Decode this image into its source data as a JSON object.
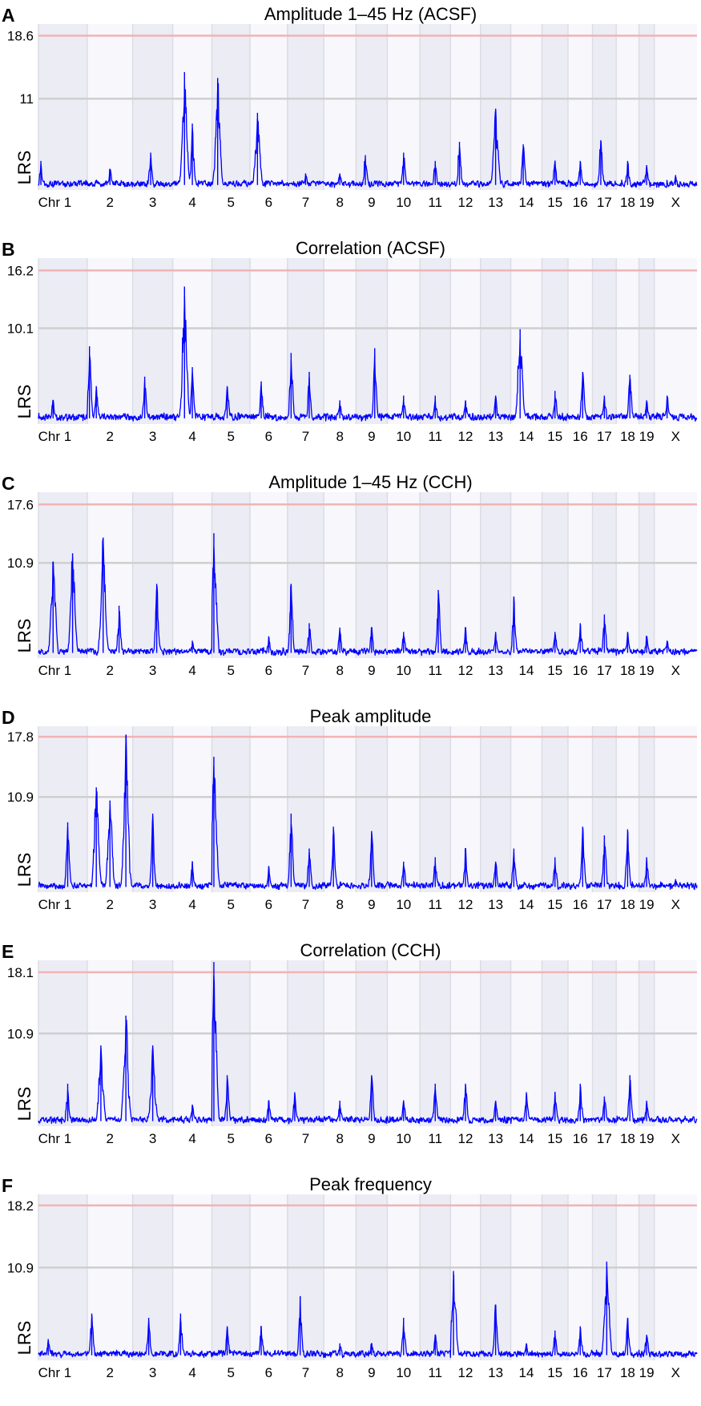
{
  "colors": {
    "line": "#0000ff",
    "threshold_line": "#f0b4b4",
    "suggestive_line": "#cfcfcf",
    "band_shaded": "#ececf5",
    "band_light": "#f7f7fc",
    "band_border": "#dcdce6"
  },
  "chromosomes": [
    {
      "name": "1",
      "label": "Chr 1",
      "length": 195
    },
    {
      "name": "2",
      "label": "2",
      "length": 182
    },
    {
      "name": "3",
      "label": "3",
      "length": 160
    },
    {
      "name": "4",
      "label": "4",
      "length": 157
    },
    {
      "name": "5",
      "label": "5",
      "length": 152
    },
    {
      "name": "6",
      "label": "6",
      "length": 150
    },
    {
      "name": "7",
      "label": "7",
      "length": 145
    },
    {
      "name": "8",
      "label": "8",
      "length": 129
    },
    {
      "name": "9",
      "label": "9",
      "length": 125
    },
    {
      "name": "10",
      "label": "10",
      "length": 131
    },
    {
      "name": "11",
      "label": "11",
      "length": 122
    },
    {
      "name": "12",
      "label": "12",
      "length": 120
    },
    {
      "name": "13",
      "label": "13",
      "length": 121
    },
    {
      "name": "14",
      "label": "14",
      "length": 125
    },
    {
      "name": "15",
      "label": "15",
      "length": 104
    },
    {
      "name": "16",
      "label": "16",
      "length": 98
    },
    {
      "name": "17",
      "label": "17",
      "length": 95
    },
    {
      "name": "18",
      "label": "18",
      "length": 91
    },
    {
      "name": "19",
      "label": "19",
      "length": 61
    },
    {
      "name": "X",
      "label": "X",
      "length": 171
    }
  ],
  "chart_data": [
    {
      "type": "line",
      "letter": "A",
      "title": "Amplitude 1–45 Hz (ACSF)",
      "ylabel": "LRS",
      "yticks": [
        "18.6",
        "11"
      ],
      "ylim": [
        0,
        20
      ],
      "significant_threshold": 18.6,
      "suggestive_threshold": 11,
      "peaks": [
        {
          "chr": "1",
          "pos": 0.05,
          "lrs": 3.5
        },
        {
          "chr": "2",
          "pos": 0.5,
          "lrs": 2.5
        },
        {
          "chr": "3",
          "pos": 0.45,
          "lrs": 4.5
        },
        {
          "chr": "4",
          "pos": 0.3,
          "lrs": 14.2
        },
        {
          "chr": "4",
          "pos": 0.5,
          "lrs": 8
        },
        {
          "chr": "5",
          "pos": 0.15,
          "lrs": 13.5
        },
        {
          "chr": "6",
          "pos": 0.2,
          "lrs": 9.3
        },
        {
          "chr": "7",
          "pos": 0.5,
          "lrs": 2
        },
        {
          "chr": "8",
          "pos": 0.5,
          "lrs": 2
        },
        {
          "chr": "9",
          "pos": 0.3,
          "lrs": 4.2
        },
        {
          "chr": "10",
          "pos": 0.5,
          "lrs": 4.5
        },
        {
          "chr": "11",
          "pos": 0.5,
          "lrs": 3.5
        },
        {
          "chr": "12",
          "pos": 0.3,
          "lrs": 5.8
        },
        {
          "chr": "13",
          "pos": 0.5,
          "lrs": 9.8
        },
        {
          "chr": "14",
          "pos": 0.4,
          "lrs": 5.5
        },
        {
          "chr": "15",
          "pos": 0.5,
          "lrs": 3.5
        },
        {
          "chr": "16",
          "pos": 0.5,
          "lrs": 3.5
        },
        {
          "chr": "17",
          "pos": 0.35,
          "lrs": 6
        },
        {
          "chr": "18",
          "pos": 0.5,
          "lrs": 3.5
        },
        {
          "chr": "19",
          "pos": 0.5,
          "lrs": 3
        },
        {
          "chr": "X",
          "pos": 0.5,
          "lrs": 1.8
        }
      ]
    },
    {
      "type": "line",
      "letter": "B",
      "title": "Correlation (ACSF)",
      "ylabel": "LRS",
      "yticks": [
        "16.2",
        "10.1"
      ],
      "ylim": [
        0,
        17.5
      ],
      "significant_threshold": 16.2,
      "suggestive_threshold": 10.1,
      "peaks": [
        {
          "chr": "1",
          "pos": 0.3,
          "lrs": 2.5
        },
        {
          "chr": "2",
          "pos": 0.05,
          "lrs": 8.2
        },
        {
          "chr": "2",
          "pos": 0.2,
          "lrs": 4
        },
        {
          "chr": "3",
          "pos": 0.3,
          "lrs": 5
        },
        {
          "chr": "4",
          "pos": 0.3,
          "lrs": 14.5
        },
        {
          "chr": "4",
          "pos": 0.5,
          "lrs": 6
        },
        {
          "chr": "5",
          "pos": 0.4,
          "lrs": 4
        },
        {
          "chr": "6",
          "pos": 0.3,
          "lrs": 4.5
        },
        {
          "chr": "7",
          "pos": 0.1,
          "lrs": 7.5
        },
        {
          "chr": "7",
          "pos": 0.6,
          "lrs": 5.5
        },
        {
          "chr": "8",
          "pos": 0.5,
          "lrs": 2.5
        },
        {
          "chr": "9",
          "pos": 0.6,
          "lrs": 8
        },
        {
          "chr": "10",
          "pos": 0.5,
          "lrs": 3
        },
        {
          "chr": "11",
          "pos": 0.5,
          "lrs": 3
        },
        {
          "chr": "12",
          "pos": 0.5,
          "lrs": 2.5
        },
        {
          "chr": "13",
          "pos": 0.5,
          "lrs": 3
        },
        {
          "chr": "14",
          "pos": 0.3,
          "lrs": 10
        },
        {
          "chr": "15",
          "pos": 0.5,
          "lrs": 3.5
        },
        {
          "chr": "16",
          "pos": 0.6,
          "lrs": 5.5
        },
        {
          "chr": "17",
          "pos": 0.5,
          "lrs": 3
        },
        {
          "chr": "18",
          "pos": 0.6,
          "lrs": 5.2
        },
        {
          "chr": "19",
          "pos": 0.5,
          "lrs": 2.5
        },
        {
          "chr": "X",
          "pos": 0.3,
          "lrs": 3
        }
      ]
    },
    {
      "type": "line",
      "letter": "C",
      "title": "Amplitude 1–45 Hz (CCH)",
      "ylabel": "LRS",
      "yticks": [
        "17.6",
        "10.9"
      ],
      "ylim": [
        0,
        19
      ],
      "significant_threshold": 17.6,
      "suggestive_threshold": 10.9,
      "peaks": [
        {
          "chr": "1",
          "pos": 0.3,
          "lrs": 11
        },
        {
          "chr": "1",
          "pos": 0.7,
          "lrs": 12
        },
        {
          "chr": "2",
          "pos": 0.35,
          "lrs": 13.8
        },
        {
          "chr": "2",
          "pos": 0.7,
          "lrs": 6
        },
        {
          "chr": "3",
          "pos": 0.6,
          "lrs": 8.5
        },
        {
          "chr": "4",
          "pos": 0.5,
          "lrs": 2
        },
        {
          "chr": "5",
          "pos": 0.05,
          "lrs": 14.3
        },
        {
          "chr": "6",
          "pos": 0.5,
          "lrs": 2.5
        },
        {
          "chr": "7",
          "pos": 0.1,
          "lrs": 8.5
        },
        {
          "chr": "7",
          "pos": 0.6,
          "lrs": 4
        },
        {
          "chr": "8",
          "pos": 0.5,
          "lrs": 3.5
        },
        {
          "chr": "9",
          "pos": 0.5,
          "lrs": 3.5
        },
        {
          "chr": "10",
          "pos": 0.5,
          "lrs": 3
        },
        {
          "chr": "11",
          "pos": 0.6,
          "lrs": 7.8
        },
        {
          "chr": "12",
          "pos": 0.5,
          "lrs": 3.5
        },
        {
          "chr": "13",
          "pos": 0.5,
          "lrs": 3
        },
        {
          "chr": "14",
          "pos": 0.1,
          "lrs": 7
        },
        {
          "chr": "15",
          "pos": 0.5,
          "lrs": 3
        },
        {
          "chr": "16",
          "pos": 0.5,
          "lrs": 4
        },
        {
          "chr": "17",
          "pos": 0.5,
          "lrs": 5
        },
        {
          "chr": "18",
          "pos": 0.5,
          "lrs": 3
        },
        {
          "chr": "19",
          "pos": 0.5,
          "lrs": 2.5
        },
        {
          "chr": "X",
          "pos": 0.3,
          "lrs": 2
        }
      ]
    },
    {
      "type": "line",
      "letter": "D",
      "title": "Peak amplitude",
      "ylabel": "LRS",
      "yticks": [
        "17.8",
        "10.9"
      ],
      "ylim": [
        0,
        19
      ],
      "significant_threshold": 17.8,
      "suggestive_threshold": 10.9,
      "peaks": [
        {
          "chr": "1",
          "pos": 0.6,
          "lrs": 8
        },
        {
          "chr": "2",
          "pos": 0.2,
          "lrs": 12
        },
        {
          "chr": "2",
          "pos": 0.5,
          "lrs": 10.5
        },
        {
          "chr": "2",
          "pos": 0.85,
          "lrs": 18
        },
        {
          "chr": "3",
          "pos": 0.5,
          "lrs": 9
        },
        {
          "chr": "4",
          "pos": 0.5,
          "lrs": 3.5
        },
        {
          "chr": "5",
          "pos": 0.05,
          "lrs": 15.5
        },
        {
          "chr": "6",
          "pos": 0.5,
          "lrs": 3
        },
        {
          "chr": "7",
          "pos": 0.1,
          "lrs": 9
        },
        {
          "chr": "7",
          "pos": 0.6,
          "lrs": 5
        },
        {
          "chr": "8",
          "pos": 0.3,
          "lrs": 7.5
        },
        {
          "chr": "9",
          "pos": 0.5,
          "lrs": 7
        },
        {
          "chr": "10",
          "pos": 0.5,
          "lrs": 3.5
        },
        {
          "chr": "11",
          "pos": 0.5,
          "lrs": 4
        },
        {
          "chr": "12",
          "pos": 0.5,
          "lrs": 5
        },
        {
          "chr": "13",
          "pos": 0.5,
          "lrs": 3.5
        },
        {
          "chr": "14",
          "pos": 0.1,
          "lrs": 5
        },
        {
          "chr": "15",
          "pos": 0.5,
          "lrs": 4
        },
        {
          "chr": "16",
          "pos": 0.6,
          "lrs": 7.5
        },
        {
          "chr": "17",
          "pos": 0.5,
          "lrs": 6.5
        },
        {
          "chr": "18",
          "pos": 0.5,
          "lrs": 7.2
        },
        {
          "chr": "19",
          "pos": 0.5,
          "lrs": 4
        },
        {
          "chr": "X",
          "pos": 0.5,
          "lrs": 1.5
        }
      ]
    },
    {
      "type": "line",
      "letter": "E",
      "title": "Correlation (CCH)",
      "ylabel": "LRS",
      "yticks": [
        "18.1",
        "10.9"
      ],
      "ylim": [
        0,
        19.5
      ],
      "significant_threshold": 18.1,
      "suggestive_threshold": 10.9,
      "peaks": [
        {
          "chr": "1",
          "pos": 0.6,
          "lrs": 5
        },
        {
          "chr": "2",
          "pos": 0.3,
          "lrs": 9.5
        },
        {
          "chr": "2",
          "pos": 0.85,
          "lrs": 13
        },
        {
          "chr": "3",
          "pos": 0.5,
          "lrs": 9.5
        },
        {
          "chr": "4",
          "pos": 0.5,
          "lrs": 2.5
        },
        {
          "chr": "5",
          "pos": 0.05,
          "lrs": 19.3
        },
        {
          "chr": "5",
          "pos": 0.4,
          "lrs": 6
        },
        {
          "chr": "6",
          "pos": 0.5,
          "lrs": 3
        },
        {
          "chr": "7",
          "pos": 0.2,
          "lrs": 4
        },
        {
          "chr": "8",
          "pos": 0.5,
          "lrs": 3
        },
        {
          "chr": "9",
          "pos": 0.5,
          "lrs": 6
        },
        {
          "chr": "10",
          "pos": 0.5,
          "lrs": 3
        },
        {
          "chr": "11",
          "pos": 0.5,
          "lrs": 5
        },
        {
          "chr": "12",
          "pos": 0.5,
          "lrs": 5
        },
        {
          "chr": "13",
          "pos": 0.5,
          "lrs": 3
        },
        {
          "chr": "14",
          "pos": 0.5,
          "lrs": 4
        },
        {
          "chr": "15",
          "pos": 0.5,
          "lrs": 4
        },
        {
          "chr": "16",
          "pos": 0.5,
          "lrs": 5
        },
        {
          "chr": "17",
          "pos": 0.5,
          "lrs": 3.5
        },
        {
          "chr": "18",
          "pos": 0.6,
          "lrs": 6
        },
        {
          "chr": "19",
          "pos": 0.5,
          "lrs": 3
        },
        {
          "chr": "X",
          "pos": 0.5,
          "lrs": 1
        }
      ]
    },
    {
      "type": "line",
      "letter": "F",
      "title": "Peak frequency",
      "ylabel": "LRS",
      "yticks": [
        "18.2",
        "10.9"
      ],
      "ylim": [
        0,
        19.5
      ],
      "significant_threshold": 18.2,
      "suggestive_threshold": 10.9,
      "peaks": [
        {
          "chr": "1",
          "pos": 0.2,
          "lrs": 2.5
        },
        {
          "chr": "2",
          "pos": 0.1,
          "lrs": 5.5
        },
        {
          "chr": "3",
          "pos": 0.4,
          "lrs": 5
        },
        {
          "chr": "4",
          "pos": 0.2,
          "lrs": 5.5
        },
        {
          "chr": "5",
          "pos": 0.4,
          "lrs": 4
        },
        {
          "chr": "6",
          "pos": 0.3,
          "lrs": 4
        },
        {
          "chr": "7",
          "pos": 0.35,
          "lrs": 7.5
        },
        {
          "chr": "8",
          "pos": 0.5,
          "lrs": 2
        },
        {
          "chr": "9",
          "pos": 0.5,
          "lrs": 2
        },
        {
          "chr": "10",
          "pos": 0.5,
          "lrs": 5
        },
        {
          "chr": "11",
          "pos": 0.5,
          "lrs": 3
        },
        {
          "chr": "12",
          "pos": 0.1,
          "lrs": 10.5
        },
        {
          "chr": "13",
          "pos": 0.5,
          "lrs": 6.5
        },
        {
          "chr": "14",
          "pos": 0.5,
          "lrs": 2
        },
        {
          "chr": "15",
          "pos": 0.5,
          "lrs": 3.5
        },
        {
          "chr": "16",
          "pos": 0.5,
          "lrs": 4
        },
        {
          "chr": "17",
          "pos": 0.6,
          "lrs": 11.6
        },
        {
          "chr": "18",
          "pos": 0.5,
          "lrs": 5
        },
        {
          "chr": "19",
          "pos": 0.5,
          "lrs": 3
        },
        {
          "chr": "X",
          "pos": 0.5,
          "lrs": 1
        }
      ]
    }
  ]
}
